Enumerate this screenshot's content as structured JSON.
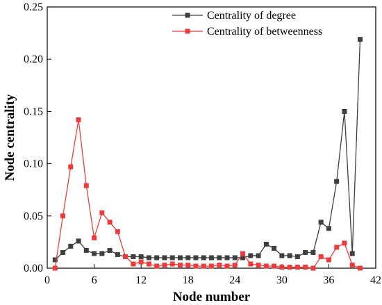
{
  "chart_data": {
    "type": "line",
    "xlabel": "Node number",
    "ylabel": "Node centrality",
    "xlim": [
      0,
      42
    ],
    "ylim": [
      0,
      0.25
    ],
    "xticks": [
      0,
      6,
      12,
      18,
      24,
      30,
      36,
      42
    ],
    "yticks": [
      0.0,
      0.05,
      0.1,
      0.15,
      0.2,
      0.25
    ],
    "ytick_labels": [
      "0.00",
      "0.05",
      "0.10",
      "0.15",
      "0.20",
      "0.25"
    ],
    "grid": false,
    "legend_position": "top-right",
    "x": [
      1,
      2,
      3,
      4,
      5,
      6,
      7,
      8,
      9,
      10,
      11,
      12,
      13,
      14,
      15,
      16,
      17,
      18,
      19,
      20,
      21,
      22,
      23,
      24,
      25,
      26,
      27,
      28,
      29,
      30,
      31,
      32,
      33,
      34,
      35,
      36,
      37,
      38,
      39,
      40
    ],
    "series": [
      {
        "name": "Centrality of degree",
        "color": "#3f3f3f",
        "marker": "square",
        "values": [
          0.008,
          0.015,
          0.021,
          0.026,
          0.017,
          0.014,
          0.014,
          0.017,
          0.013,
          0.011,
          0.011,
          0.011,
          0.01,
          0.01,
          0.01,
          0.01,
          0.01,
          0.01,
          0.01,
          0.01,
          0.01,
          0.01,
          0.01,
          0.01,
          0.01,
          0.012,
          0.012,
          0.023,
          0.019,
          0.012,
          0.012,
          0.011,
          0.015,
          0.015,
          0.044,
          0.038,
          0.083,
          0.15,
          0.014,
          0.219
        ]
      },
      {
        "name": "Centrality of betweenness",
        "color": "#ee3b3b",
        "marker": "square",
        "values": [
          0.0,
          0.05,
          0.097,
          0.142,
          0.079,
          0.029,
          0.053,
          0.044,
          0.035,
          0.011,
          0.004,
          0.006,
          0.004,
          0.002,
          0.003,
          0.004,
          0.003,
          0.003,
          0.002,
          0.002,
          0.002,
          0.003,
          0.002,
          0.003,
          0.014,
          0.004,
          0.003,
          0.002,
          0.002,
          0.001,
          0.001,
          0.001,
          0.001,
          0.0,
          0.011,
          0.008,
          0.02,
          0.024,
          0.003,
          0.0
        ]
      }
    ]
  }
}
